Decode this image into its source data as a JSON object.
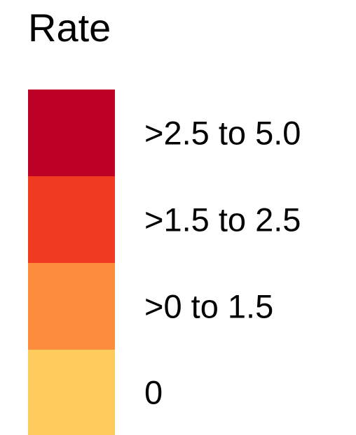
{
  "chart_data": {
    "type": "legend",
    "title": "Rate",
    "items": [
      {
        "label": ">2.5 to 5.0",
        "color": "#BD0026"
      },
      {
        "label": ">1.5 to 2.5",
        "color": "#F03B20"
      },
      {
        "label": ">0 to 1.5",
        "color": "#FD8D3C"
      },
      {
        "label": "0",
        "color": "#FECC5C"
      }
    ]
  }
}
